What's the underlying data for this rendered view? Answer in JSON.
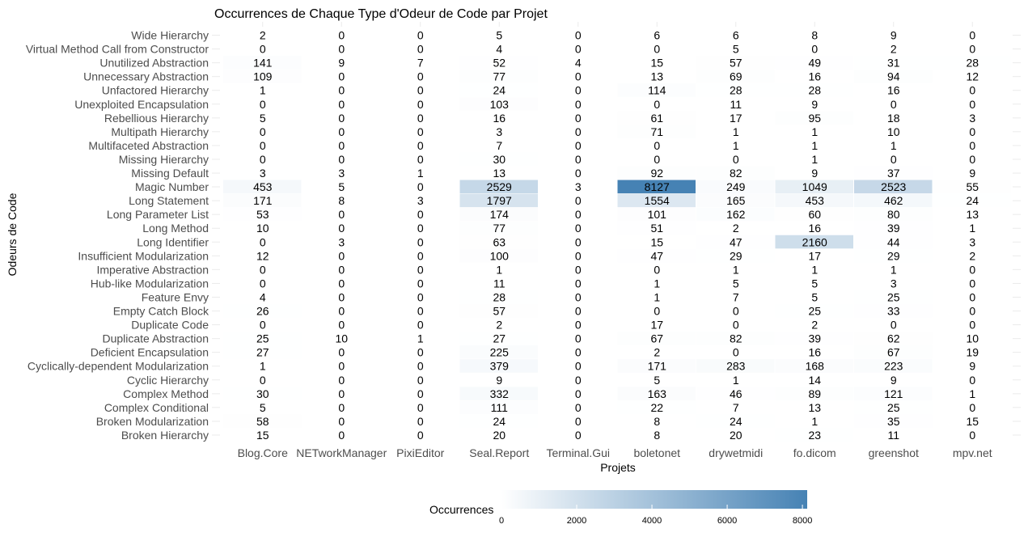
{
  "chart_data": {
    "type": "heatmap",
    "title": "Occurrences de Chaque Type d'Odeur de Code par Projet",
    "xlabel": "Projets",
    "ylabel": "Odeurs de Code",
    "columns": [
      "Blog.Core",
      "NETworkManager",
      "PixiEditor",
      "Seal.Report",
      "Terminal.Gui",
      "boletonet",
      "drywetmidi",
      "fo.dicom",
      "greenshot",
      "mpv.net"
    ],
    "rows": [
      "Wide Hierarchy",
      "Virtual Method Call from Constructor",
      "Unutilized Abstraction",
      "Unnecessary Abstraction",
      "Unfactored Hierarchy",
      "Unexploited Encapsulation",
      "Rebellious Hierarchy",
      "Multipath Hierarchy",
      "Multifaceted Abstraction",
      "Missing Hierarchy",
      "Missing Default",
      "Magic Number",
      "Long Statement",
      "Long Parameter List",
      "Long Method",
      "Long Identifier",
      "Insufficient Modularization",
      "Imperative Abstraction",
      "Hub-like Modularization",
      "Feature Envy",
      "Empty Catch Block",
      "Duplicate Code",
      "Duplicate Abstraction",
      "Deficient Encapsulation",
      "Cyclically-dependent Modularization",
      "Cyclic Hierarchy",
      "Complex Method",
      "Complex Conditional",
      "Broken Modularization",
      "Broken Hierarchy"
    ],
    "values": [
      [
        2,
        0,
        0,
        5,
        0,
        6,
        6,
        8,
        9,
        0
      ],
      [
        0,
        0,
        0,
        4,
        0,
        0,
        5,
        0,
        2,
        0
      ],
      [
        141,
        9,
        7,
        52,
        4,
        15,
        57,
        49,
        31,
        28
      ],
      [
        109,
        0,
        0,
        77,
        0,
        13,
        69,
        16,
        94,
        12
      ],
      [
        1,
        0,
        0,
        24,
        0,
        114,
        28,
        28,
        16,
        0
      ],
      [
        0,
        0,
        0,
        103,
        0,
        0,
        11,
        9,
        0,
        0
      ],
      [
        5,
        0,
        0,
        16,
        0,
        61,
        17,
        95,
        18,
        3
      ],
      [
        0,
        0,
        0,
        3,
        0,
        71,
        1,
        1,
        10,
        0
      ],
      [
        0,
        0,
        0,
        7,
        0,
        0,
        1,
        1,
        1,
        0
      ],
      [
        0,
        0,
        0,
        30,
        0,
        0,
        0,
        1,
        0,
        0
      ],
      [
        3,
        3,
        1,
        13,
        0,
        92,
        82,
        9,
        37,
        9
      ],
      [
        453,
        5,
        0,
        2529,
        3,
        8127,
        249,
        1049,
        2523,
        55
      ],
      [
        171,
        8,
        3,
        1797,
        0,
        1554,
        165,
        453,
        462,
        24
      ],
      [
        53,
        0,
        0,
        174,
        0,
        101,
        162,
        60,
        80,
        13
      ],
      [
        10,
        0,
        0,
        77,
        0,
        51,
        2,
        16,
        39,
        1
      ],
      [
        0,
        3,
        0,
        63,
        0,
        15,
        47,
        2160,
        44,
        3
      ],
      [
        12,
        0,
        0,
        100,
        0,
        47,
        29,
        17,
        29,
        2
      ],
      [
        0,
        0,
        0,
        1,
        0,
        0,
        1,
        1,
        1,
        0
      ],
      [
        0,
        0,
        0,
        11,
        0,
        1,
        5,
        5,
        3,
        0
      ],
      [
        4,
        0,
        0,
        28,
        0,
        1,
        7,
        5,
        25,
        0
      ],
      [
        26,
        0,
        0,
        57,
        0,
        0,
        0,
        25,
        33,
        0
      ],
      [
        0,
        0,
        0,
        2,
        0,
        17,
        0,
        2,
        0,
        0
      ],
      [
        25,
        10,
        1,
        27,
        0,
        67,
        82,
        39,
        62,
        10
      ],
      [
        27,
        0,
        0,
        225,
        0,
        2,
        0,
        16,
        67,
        19
      ],
      [
        1,
        0,
        0,
        379,
        0,
        171,
        283,
        168,
        223,
        9
      ],
      [
        0,
        0,
        0,
        9,
        0,
        5,
        1,
        14,
        9,
        0
      ],
      [
        30,
        0,
        0,
        332,
        0,
        163,
        46,
        89,
        121,
        1
      ],
      [
        5,
        0,
        0,
        111,
        0,
        22,
        7,
        13,
        25,
        0
      ],
      [
        58,
        0,
        0,
        24,
        0,
        8,
        24,
        1,
        35,
        15
      ],
      [
        15,
        0,
        0,
        20,
        0,
        8,
        20,
        23,
        11,
        0
      ]
    ],
    "legend": {
      "title": "Occurrences",
      "ticks": [
        0,
        2000,
        4000,
        6000,
        8000
      ],
      "min": 0,
      "max": 8127,
      "low_color": "#ffffff",
      "high_color": "#4682b4",
      "placement": "bottom"
    }
  }
}
